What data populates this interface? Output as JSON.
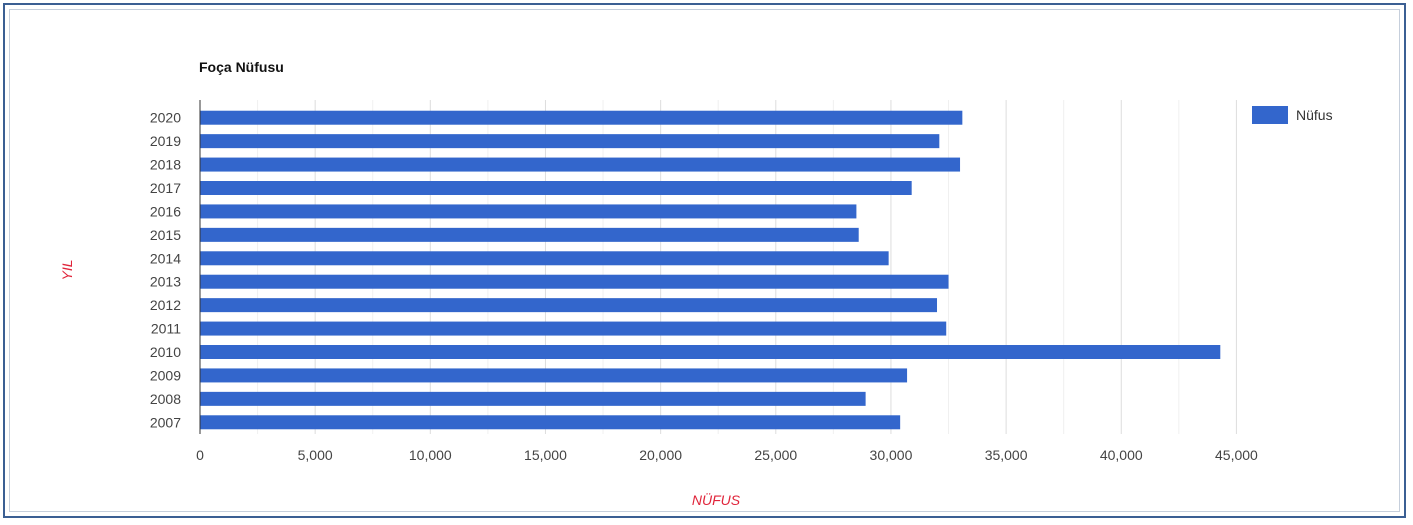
{
  "chart_data": {
    "type": "bar",
    "orientation": "horizontal",
    "title": "Foça Nüfusu",
    "xlabel": "NÜFUS",
    "ylabel": "YIL",
    "categories": [
      "2020",
      "2019",
      "2018",
      "2017",
      "2016",
      "2015",
      "2014",
      "2013",
      "2012",
      "2011",
      "2010",
      "2009",
      "2008",
      "2007"
    ],
    "series": [
      {
        "name": "Nüfus",
        "color": "#3366cc",
        "values": [
          33100,
          32100,
          33000,
          30900,
          28500,
          28600,
          29900,
          32500,
          32000,
          32400,
          44300,
          30700,
          28900,
          30400
        ]
      }
    ],
    "xlim": [
      0,
      47500
    ],
    "xticks": [
      0,
      5000,
      10000,
      15000,
      20000,
      25000,
      30000,
      35000,
      40000,
      45000
    ],
    "xtick_labels": [
      "0",
      "5,000",
      "10,000",
      "15,000",
      "20,000",
      "25,000",
      "30,000",
      "35,000",
      "40,000",
      "45,000"
    ],
    "grid": true,
    "legend_position": "top-right"
  }
}
